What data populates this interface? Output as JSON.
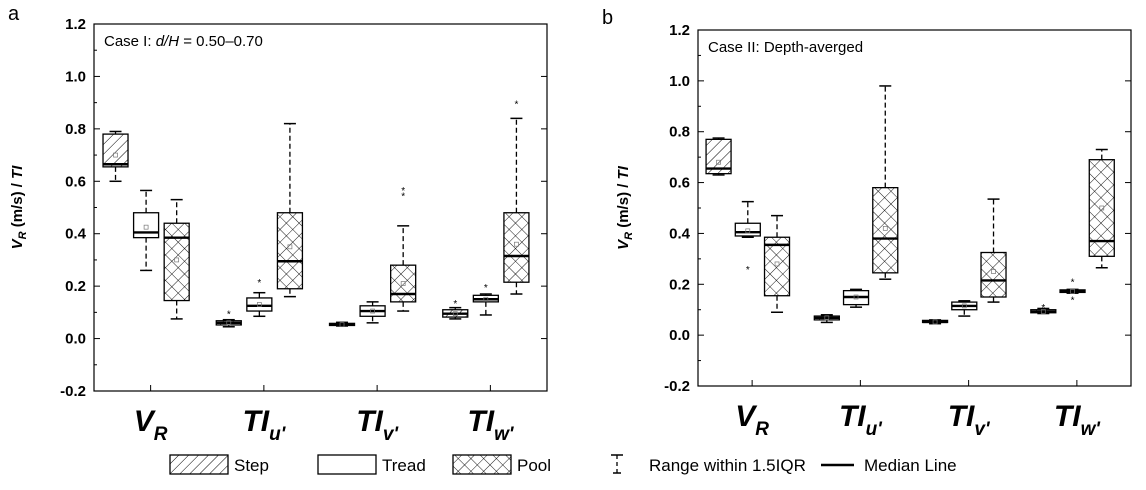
{
  "chart_data": [
    {
      "panel_label": "a",
      "type": "box",
      "title": "Case I: d/H = 0.50–0.70",
      "title_parts": {
        "pre": "Case I: ",
        "italic": "d/H",
        "post": " = 0.50–0.70"
      },
      "ylabel": "V_R (m/s) / TI",
      "ylim": [
        -0.2,
        1.2
      ],
      "yticks": [
        "-0.2",
        "0.0",
        "0.2",
        "0.4",
        "0.6",
        "0.8",
        "1.0",
        "1.2"
      ],
      "grid": false,
      "categories": [
        "V_R",
        "TI_u'",
        "TI_v'",
        "TI_w'"
      ],
      "series": [
        {
          "name": "Step",
          "boxes": [
            {
              "category": "V_R",
              "whisker_low": 0.6,
              "q1": 0.655,
              "median": 0.665,
              "q3": 0.78,
              "whisker_high": 0.79,
              "mean": 0.7,
              "outliers": []
            },
            {
              "category": "TI_u'",
              "whisker_low": 0.045,
              "q1": 0.052,
              "median": 0.06,
              "q3": 0.068,
              "whisker_high": 0.072,
              "mean": 0.06,
              "outliers": [
                0.1
              ]
            },
            {
              "category": "TI_v'",
              "whisker_low": 0.048,
              "q1": 0.05,
              "median": 0.053,
              "q3": 0.058,
              "whisker_high": 0.062,
              "mean": 0.053,
              "outliers": []
            },
            {
              "category": "TI_w'",
              "whisker_low": 0.075,
              "q1": 0.082,
              "median": 0.095,
              "q3": 0.11,
              "whisker_high": 0.118,
              "mean": 0.095,
              "outliers": [
                0.14
              ]
            }
          ]
        },
        {
          "name": "Tread",
          "boxes": [
            {
              "category": "V_R",
              "whisker_low": 0.26,
              "q1": 0.385,
              "median": 0.405,
              "q3": 0.48,
              "whisker_high": 0.565,
              "mean": 0.425,
              "outliers": []
            },
            {
              "category": "TI_u'",
              "whisker_low": 0.085,
              "q1": 0.105,
              "median": 0.125,
              "q3": 0.155,
              "whisker_high": 0.175,
              "mean": 0.13,
              "outliers": [
                0.22
              ]
            },
            {
              "category": "TI_v'",
              "whisker_low": 0.06,
              "q1": 0.085,
              "median": 0.105,
              "q3": 0.125,
              "whisker_high": 0.14,
              "mean": 0.105,
              "outliers": []
            },
            {
              "category": "TI_w'",
              "whisker_low": 0.09,
              "q1": 0.14,
              "median": 0.15,
              "q3": 0.165,
              "whisker_high": 0.17,
              "mean": 0.15,
              "outliers": [
                0.2
              ]
            }
          ]
        },
        {
          "name": "Pool",
          "boxes": [
            {
              "category": "V_R",
              "whisker_low": 0.075,
              "q1": 0.145,
              "median": 0.385,
              "q3": 0.44,
              "whisker_high": 0.53,
              "mean": 0.3,
              "outliers": []
            },
            {
              "category": "TI_u'",
              "whisker_low": 0.16,
              "q1": 0.19,
              "median": 0.295,
              "q3": 0.48,
              "whisker_high": 0.82,
              "mean": 0.35,
              "outliers": []
            },
            {
              "category": "TI_v'",
              "whisker_low": 0.105,
              "q1": 0.14,
              "median": 0.17,
              "q3": 0.28,
              "whisker_high": 0.43,
              "mean": 0.21,
              "outliers": [
                0.57,
                0.55
              ]
            },
            {
              "category": "TI_w'",
              "whisker_low": 0.17,
              "q1": 0.215,
              "median": 0.315,
              "q3": 0.48,
              "whisker_high": 0.84,
              "mean": 0.36,
              "outliers": [
                0.9
              ]
            }
          ]
        }
      ]
    },
    {
      "panel_label": "b",
      "type": "box",
      "title": "Case II: Depth-averged",
      "title_parts": {
        "pre": "Case II: Depth-averged",
        "italic": "",
        "post": ""
      },
      "ylabel": "V_R (m/s) / TI",
      "ylim": [
        -0.2,
        1.2
      ],
      "yticks": [
        "-0.2",
        "0.0",
        "0.2",
        "0.4",
        "0.6",
        "0.8",
        "1.0",
        "1.2"
      ],
      "grid": false,
      "categories": [
        "V_R",
        "TI_u'",
        "TI_v'",
        "TI_w'"
      ],
      "series": [
        {
          "name": "Step",
          "boxes": [
            {
              "category": "V_R",
              "whisker_low": 0.63,
              "q1": 0.635,
              "median": 0.655,
              "q3": 0.77,
              "whisker_high": 0.775,
              "mean": 0.68,
              "outliers": []
            },
            {
              "category": "TI_u'",
              "whisker_low": 0.05,
              "q1": 0.06,
              "median": 0.068,
              "q3": 0.075,
              "whisker_high": 0.08,
              "mean": 0.068,
              "outliers": []
            },
            {
              "category": "TI_v'",
              "whisker_low": 0.045,
              "q1": 0.05,
              "median": 0.052,
              "q3": 0.058,
              "whisker_high": 0.06,
              "mean": 0.052,
              "outliers": []
            },
            {
              "category": "TI_w'",
              "whisker_low": 0.085,
              "q1": 0.088,
              "median": 0.092,
              "q3": 0.1,
              "whisker_high": 0.105,
              "mean": 0.093,
              "outliers": [
                0.115
              ]
            }
          ]
        },
        {
          "name": "Tread",
          "boxes": [
            {
              "category": "V_R",
              "whisker_low": 0.385,
              "q1": 0.39,
              "median": 0.405,
              "q3": 0.44,
              "whisker_high": 0.525,
              "mean": 0.41,
              "outliers": [
                0.265
              ]
            },
            {
              "category": "TI_u'",
              "whisker_low": 0.11,
              "q1": 0.12,
              "median": 0.15,
              "q3": 0.175,
              "whisker_high": 0.18,
              "mean": 0.15,
              "outliers": []
            },
            {
              "category": "TI_v'",
              "whisker_low": 0.075,
              "q1": 0.1,
              "median": 0.115,
              "q3": 0.13,
              "whisker_high": 0.135,
              "mean": 0.115,
              "outliers": []
            },
            {
              "category": "TI_w'",
              "whisker_low": 0.165,
              "q1": 0.168,
              "median": 0.172,
              "q3": 0.178,
              "whisker_high": 0.18,
              "mean": 0.172,
              "outliers": [
                0.215,
                0.145
              ]
            }
          ]
        },
        {
          "name": "Pool",
          "boxes": [
            {
              "category": "V_R",
              "whisker_low": 0.09,
              "q1": 0.155,
              "median": 0.355,
              "q3": 0.385,
              "whisker_high": 0.47,
              "mean": 0.28,
              "outliers": []
            },
            {
              "category": "TI_u'",
              "whisker_low": 0.22,
              "q1": 0.245,
              "median": 0.38,
              "q3": 0.58,
              "whisker_high": 0.98,
              "mean": 0.42,
              "outliers": []
            },
            {
              "category": "TI_v'",
              "whisker_low": 0.13,
              "q1": 0.15,
              "median": 0.215,
              "q3": 0.325,
              "whisker_high": 0.535,
              "mean": 0.25,
              "outliers": []
            },
            {
              "category": "TI_w'",
              "whisker_low": 0.265,
              "q1": 0.31,
              "median": 0.37,
              "q3": 0.69,
              "whisker_high": 0.73,
              "mean": 0.5,
              "outliers": []
            }
          ]
        }
      ]
    }
  ],
  "legend": {
    "items": [
      {
        "label": "Step",
        "pattern": "step"
      },
      {
        "label": "Tread",
        "pattern": "tread"
      },
      {
        "label": "Pool",
        "pattern": "pool"
      },
      {
        "label": "Range within 1.5IQR",
        "pattern": "whisker"
      },
      {
        "label": "Median Line",
        "pattern": "median"
      }
    ]
  },
  "category_labels": [
    {
      "main": "V",
      "sub": "R"
    },
    {
      "main": "TI",
      "sub": "u'"
    },
    {
      "main": "TI",
      "sub": "v'"
    },
    {
      "main": "TI",
      "sub": "w'"
    }
  ]
}
